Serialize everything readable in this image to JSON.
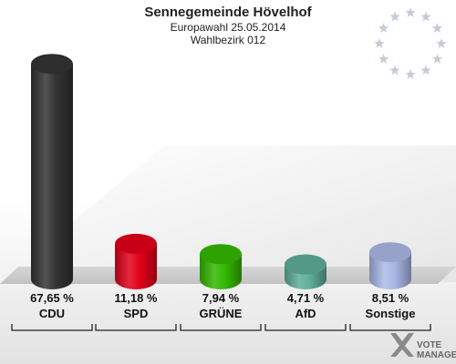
{
  "header": {
    "title": "Sennegemeinde Hövelhof",
    "subtitle": "Europawahl 25.05.2014",
    "district": "Wahlbezirk 012"
  },
  "colors": {
    "CDU": "#333333",
    "SPD": "#e2001a",
    "GRÜNE": "#34b800",
    "AfD": "#5fae9a",
    "Sonstige": "#aab8e6"
  },
  "chart_data": {
    "type": "bar",
    "categories": [
      "CDU",
      "SPD",
      "GRÜNE",
      "AfD",
      "Sonstige"
    ],
    "values": [
      67.65,
      11.18,
      7.94,
      4.71,
      8.51
    ],
    "labels": [
      "67,65 %",
      "11,18 %",
      "7,94 %",
      "4,71 %",
      "8,51 %"
    ],
    "title": "Sennegemeinde Hövelhof",
    "subtitle": "Europawahl 25.05.2014",
    "xlabel": "",
    "ylabel": "",
    "ylim": [
      0,
      70
    ],
    "legend": "none",
    "grid": false
  },
  "logo": {
    "line1": "VOTE",
    "line2": "MANAGER"
  }
}
